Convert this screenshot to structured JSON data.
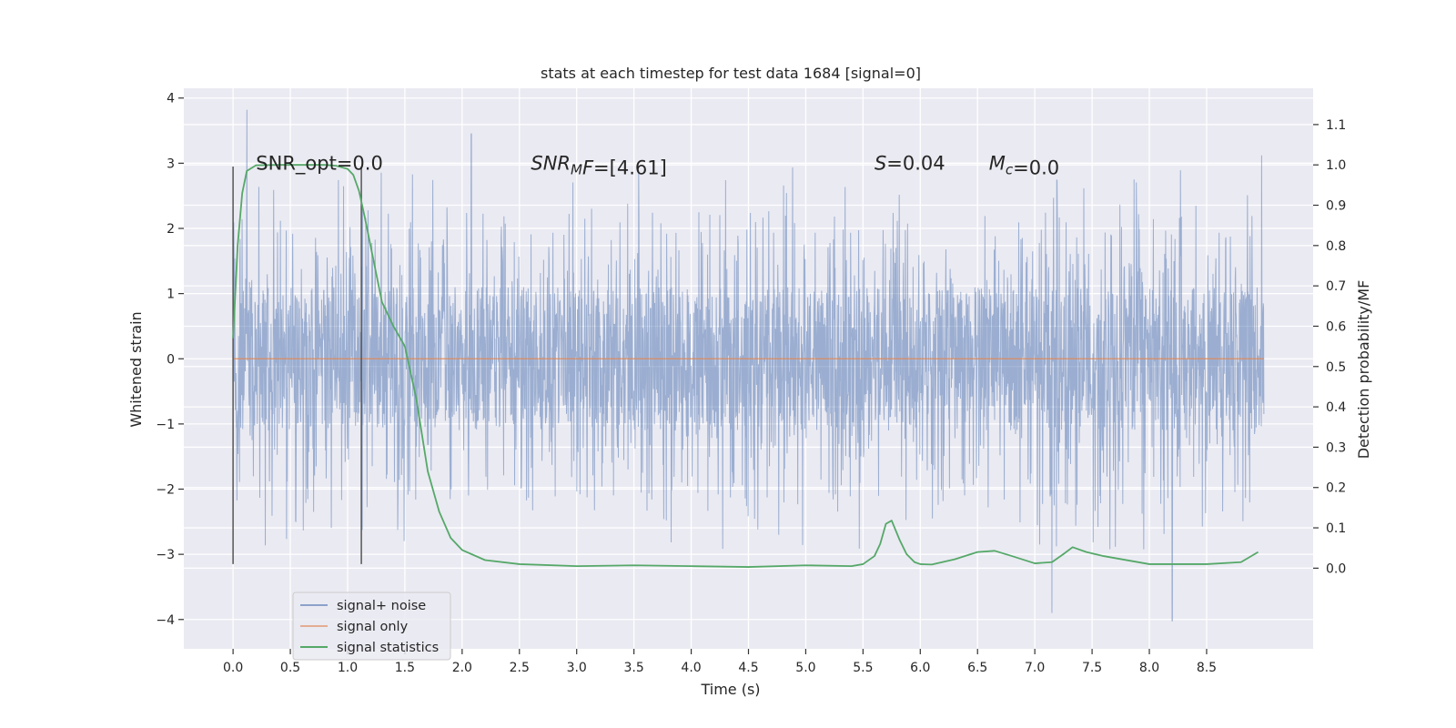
{
  "chart_data": {
    "type": "line",
    "title": "stats at each timestep for test data 1684 [signal=0]",
    "xlabel": "Time (s)",
    "ylabel": "Whitened strain",
    "y2label": "Detection probability/MF",
    "xlim": [
      -0.43,
      9.43
    ],
    "ylim": [
      -4.45,
      4.15
    ],
    "y2lim": [
      -0.2,
      1.19
    ],
    "x_ticks": [
      0.0,
      0.5,
      1.0,
      1.5,
      2.0,
      2.5,
      3.0,
      3.5,
      4.0,
      4.5,
      5.0,
      5.5,
      6.0,
      6.5,
      7.0,
      7.5,
      8.0,
      8.5
    ],
    "x_tick_labels": [
      "0.0",
      "0.5",
      "1.0",
      "1.5",
      "2.0",
      "2.5",
      "3.0",
      "3.5",
      "4.0",
      "4.5",
      "5.0",
      "5.5",
      "6.0",
      "6.5",
      "7.0",
      "7.5",
      "8.0",
      "8.5"
    ],
    "y_ticks": [
      4,
      3,
      2,
      1,
      0,
      -1,
      -2,
      -3,
      -4
    ],
    "y_tick_labels": [
      "4",
      "3",
      "2",
      "1",
      "0",
      "−1",
      "−2",
      "−3",
      "−4"
    ],
    "y2_ticks": [
      1.1,
      1.0,
      0.9,
      0.8,
      0.7,
      0.6,
      0.5,
      0.4,
      0.3,
      0.2,
      0.1,
      0.0
    ],
    "y2_tick_labels": [
      "1.1",
      "1.0",
      "0.9",
      "0.8",
      "0.7",
      "0.6",
      "0.5",
      "0.4",
      "0.3",
      "0.2",
      "0.1",
      "0.0"
    ],
    "grid": true,
    "legend_position": "lower-left",
    "colors": {
      "background": "#eaeaf2",
      "grid": "#ffffff",
      "noise": "#4c72b0",
      "signal": "#dd8452",
      "stat": "#55a868",
      "vline": "#555555"
    },
    "series": [
      {
        "name": "signal+ noise",
        "description_range": "noise band approx +/-1.1 with spikes",
        "x_range": [
          0.0,
          9.0
        ],
        "peak_spikes": [
          {
            "x": 0.12,
            "y": 3.82
          },
          {
            "x": 2.08,
            "y": 3.45
          },
          {
            "x": 7.15,
            "y": -3.9
          },
          {
            "x": 8.2,
            "y": -4.02
          },
          {
            "x": 8.98,
            "y": 3.12
          }
        ]
      },
      {
        "name": "signal only",
        "x": [
          0.0,
          9.0
        ],
        "y": [
          0.0,
          0.0
        ]
      },
      {
        "name": "signal statistics",
        "x": [
          0.0,
          0.04,
          0.08,
          0.12,
          0.2,
          0.4,
          0.6,
          0.8,
          0.9,
          1.0,
          1.05,
          1.1,
          1.15,
          1.2,
          1.3,
          1.4,
          1.5,
          1.6,
          1.7,
          1.8,
          1.9,
          2.0,
          2.2,
          2.5,
          3.0,
          3.5,
          4.0,
          4.5,
          5.0,
          5.4,
          5.5,
          5.6,
          5.65,
          5.7,
          5.75,
          5.82,
          5.88,
          5.95,
          6.0,
          6.1,
          6.3,
          6.5,
          6.65,
          6.8,
          7.0,
          7.15,
          7.25,
          7.33,
          7.45,
          7.6,
          8.0,
          8.5,
          8.8,
          8.95
        ],
        "y": [
          0.57,
          0.8,
          0.93,
          0.985,
          0.999,
          1.0,
          1.0,
          1.0,
          0.998,
          0.99,
          0.975,
          0.935,
          0.87,
          0.8,
          0.66,
          0.6,
          0.55,
          0.42,
          0.24,
          0.14,
          0.075,
          0.045,
          0.02,
          0.01,
          0.005,
          0.007,
          0.005,
          0.003,
          0.007,
          0.005,
          0.01,
          0.03,
          0.06,
          0.11,
          0.118,
          0.07,
          0.035,
          0.015,
          0.01,
          0.009,
          0.022,
          0.04,
          0.043,
          0.03,
          0.012,
          0.015,
          0.035,
          0.052,
          0.04,
          0.03,
          0.01,
          0.01,
          0.015,
          0.04
        ]
      }
    ],
    "vlines": [
      {
        "x": 0.0,
        "ymin": -3.15,
        "ymax": 2.95
      },
      {
        "x": 1.12,
        "ymin": -3.15,
        "ymax": 2.95
      }
    ],
    "annotations": [
      {
        "x": 0.2,
        "y": 2.9,
        "parts": [
          {
            "text": "SNR_opt=0.0",
            "style": "normal"
          }
        ]
      },
      {
        "x": 2.6,
        "y": 2.9,
        "parts": [
          {
            "text": "SNR",
            "style": "italic"
          },
          {
            "text": "M",
            "style": "italic-sub"
          },
          {
            "text": "F",
            "style": "italic"
          },
          {
            "text": "=[4.61]",
            "style": "normal"
          }
        ]
      },
      {
        "x": 5.6,
        "y": 2.9,
        "parts": [
          {
            "text": "S",
            "style": "italic"
          },
          {
            "text": "=0.04",
            "style": "normal"
          }
        ]
      },
      {
        "x": 6.6,
        "y": 2.9,
        "parts": [
          {
            "text": "M",
            "style": "italic"
          },
          {
            "text": "c",
            "style": "italic-sub"
          },
          {
            "text": "=0.0",
            "style": "normal"
          }
        ]
      }
    ],
    "legend": [
      {
        "label": "signal+ noise",
        "color": "#4c72b0"
      },
      {
        "label": "signal only",
        "color": "#dd8452"
      },
      {
        "label": "signal statistics",
        "color": "#55a868"
      }
    ]
  }
}
